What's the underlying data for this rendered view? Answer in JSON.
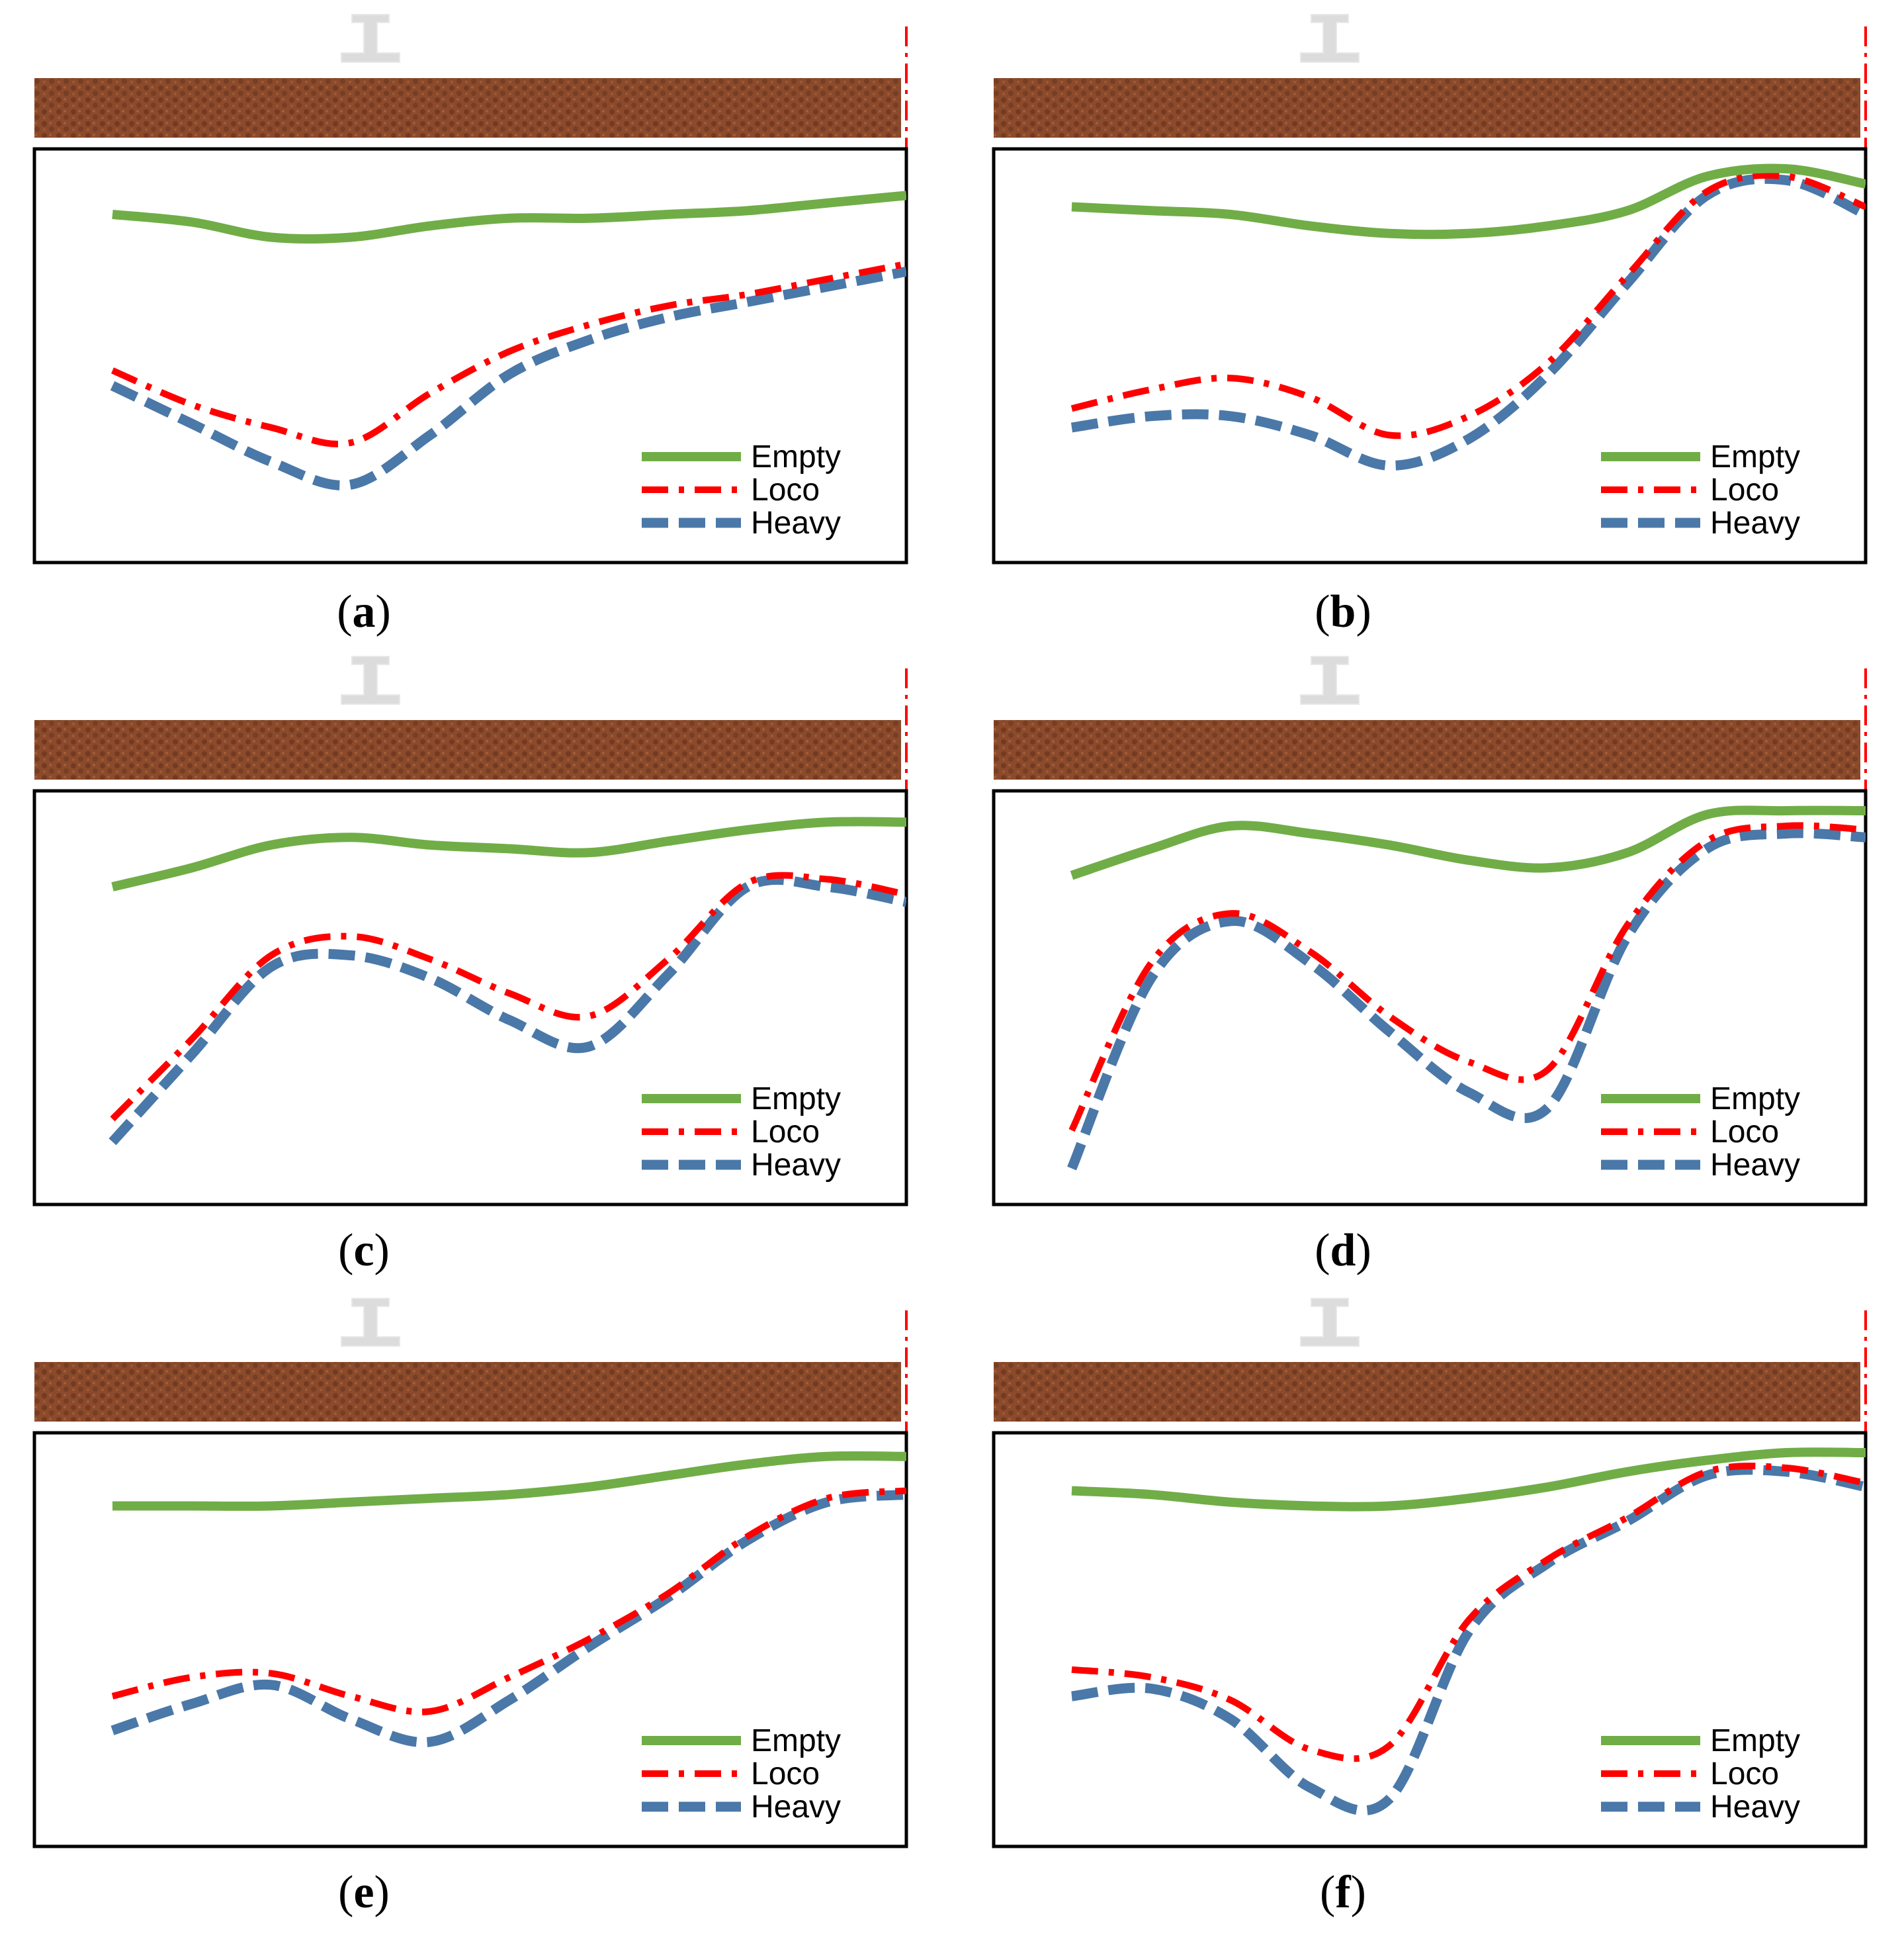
{
  "figure": {
    "legend_labels": {
      "empty": "Empty",
      "loco": "Loco",
      "heavy": "Heavy"
    },
    "colors": {
      "empty": "#70ad47",
      "loco": "#ff0000",
      "heavy": "#4a78a8",
      "sleeper": "#8b4a2b",
      "sleeper_dark": "#5e2e1a",
      "rail": "#dcdcdc",
      "frame": "#000000"
    }
  },
  "chart_data": [
    {
      "panel": "a",
      "caption_open": "(",
      "caption_letter": "a",
      "caption_close": ")",
      "type": "line",
      "x": [
        0,
        0.1,
        0.2,
        0.3,
        0.4,
        0.5,
        0.6,
        0.7,
        0.8,
        0.9,
        1.0
      ],
      "ylim": [
        0,
        1
      ],
      "series": [
        {
          "name": "Empty",
          "values": [
            0.88,
            0.86,
            0.82,
            0.82,
            0.85,
            0.87,
            0.87,
            0.88,
            0.89,
            0.91,
            0.93
          ]
        },
        {
          "name": "Loco",
          "values": [
            0.47,
            0.38,
            0.32,
            0.28,
            0.41,
            0.52,
            0.59,
            0.64,
            0.67,
            0.71,
            0.75
          ]
        },
        {
          "name": "Heavy",
          "values": [
            0.43,
            0.33,
            0.23,
            0.17,
            0.3,
            0.46,
            0.55,
            0.61,
            0.65,
            0.69,
            0.73
          ]
        }
      ]
    },
    {
      "panel": "b",
      "caption_open": "(",
      "caption_letter": "b",
      "caption_close": ")",
      "type": "line",
      "x": [
        0,
        0.1,
        0.2,
        0.3,
        0.4,
        0.5,
        0.6,
        0.7,
        0.8,
        0.9,
        1.0
      ],
      "ylim": [
        0,
        1
      ],
      "series": [
        {
          "name": "Empty",
          "values": [
            0.9,
            0.89,
            0.88,
            0.85,
            0.83,
            0.83,
            0.85,
            0.89,
            0.98,
            1.0,
            0.96
          ]
        },
        {
          "name": "Loco",
          "values": [
            0.37,
            0.42,
            0.45,
            0.4,
            0.3,
            0.35,
            0.49,
            0.72,
            0.94,
            0.98,
            0.9
          ]
        },
        {
          "name": "Heavy",
          "values": [
            0.32,
            0.35,
            0.35,
            0.3,
            0.22,
            0.29,
            0.46,
            0.7,
            0.93,
            0.97,
            0.88
          ]
        }
      ]
    },
    {
      "panel": "c",
      "caption_open": "(",
      "caption_letter": "c",
      "caption_close": ")",
      "type": "line",
      "x": [
        0,
        0.1,
        0.2,
        0.3,
        0.4,
        0.5,
        0.6,
        0.7,
        0.8,
        0.9,
        1.0
      ],
      "ylim": [
        0,
        1
      ],
      "series": [
        {
          "name": "Empty",
          "values": [
            0.8,
            0.85,
            0.91,
            0.93,
            0.91,
            0.9,
            0.89,
            0.92,
            0.95,
            0.97,
            0.97
          ]
        },
        {
          "name": "Loco",
          "values": [
            0.19,
            0.4,
            0.62,
            0.67,
            0.61,
            0.52,
            0.46,
            0.61,
            0.81,
            0.82,
            0.78
          ]
        },
        {
          "name": "Heavy",
          "values": [
            0.13,
            0.36,
            0.59,
            0.62,
            0.56,
            0.45,
            0.38,
            0.57,
            0.8,
            0.8,
            0.76
          ]
        }
      ]
    },
    {
      "panel": "d",
      "caption_open": "(",
      "caption_letter": "d",
      "caption_close": ")",
      "type": "line",
      "x": [
        0,
        0.1,
        0.2,
        0.3,
        0.4,
        0.5,
        0.6,
        0.7,
        0.8,
        0.9,
        1.0
      ],
      "ylim": [
        0,
        1
      ],
      "series": [
        {
          "name": "Empty",
          "values": [
            0.83,
            0.9,
            0.96,
            0.94,
            0.91,
            0.87,
            0.85,
            0.89,
            0.99,
            1.0,
            1.0
          ]
        },
        {
          "name": "Loco",
          "values": [
            0.16,
            0.6,
            0.73,
            0.63,
            0.46,
            0.34,
            0.32,
            0.7,
            0.92,
            0.96,
            0.95
          ]
        },
        {
          "name": "Heavy",
          "values": [
            0.06,
            0.56,
            0.71,
            0.6,
            0.42,
            0.26,
            0.22,
            0.67,
            0.9,
            0.94,
            0.93
          ]
        }
      ]
    },
    {
      "panel": "e",
      "caption_open": "(",
      "caption_letter": "e",
      "caption_close": ")",
      "type": "line",
      "x": [
        0,
        0.1,
        0.2,
        0.3,
        0.4,
        0.5,
        0.6,
        0.7,
        0.8,
        0.9,
        1.0
      ],
      "ylim": [
        0,
        1
      ],
      "series": [
        {
          "name": "Empty",
          "values": [
            0.86,
            0.86,
            0.86,
            0.87,
            0.88,
            0.89,
            0.91,
            0.94,
            0.97,
            0.99,
            0.99
          ]
        },
        {
          "name": "Loco",
          "values": [
            0.36,
            0.41,
            0.42,
            0.36,
            0.32,
            0.41,
            0.51,
            0.63,
            0.78,
            0.88,
            0.9
          ]
        },
        {
          "name": "Heavy",
          "values": [
            0.27,
            0.34,
            0.39,
            0.3,
            0.24,
            0.35,
            0.49,
            0.62,
            0.77,
            0.87,
            0.89
          ]
        }
      ]
    },
    {
      "panel": "f",
      "caption_open": "(",
      "caption_letter": "f",
      "caption_close": ")",
      "type": "line",
      "x": [
        0,
        0.1,
        0.2,
        0.3,
        0.4,
        0.5,
        0.6,
        0.7,
        0.8,
        0.9,
        1.0
      ],
      "ylim": [
        0,
        1
      ],
      "series": [
        {
          "name": "Empty",
          "values": [
            0.9,
            0.89,
            0.87,
            0.86,
            0.86,
            0.88,
            0.91,
            0.95,
            0.98,
            1.0,
            1.0
          ]
        },
        {
          "name": "Loco",
          "values": [
            0.43,
            0.41,
            0.35,
            0.22,
            0.23,
            0.56,
            0.72,
            0.83,
            0.95,
            0.96,
            0.92
          ]
        },
        {
          "name": "Heavy",
          "values": [
            0.36,
            0.38,
            0.3,
            0.12,
            0.09,
            0.53,
            0.71,
            0.82,
            0.94,
            0.95,
            0.91
          ]
        }
      ]
    }
  ]
}
